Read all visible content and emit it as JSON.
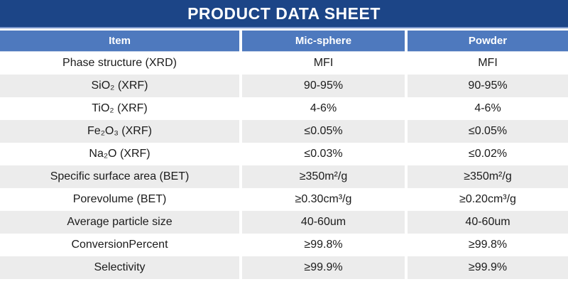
{
  "banner": {
    "title": "PRODUCT DATA SHEET"
  },
  "table": {
    "columns": [
      "Item",
      "Mic-sphere",
      "Powder"
    ],
    "rows": [
      [
        "Phase structure (XRD)",
        "MFI",
        "MFI"
      ],
      [
        "SiO₂ (XRF)",
        "90-95%",
        "90-95%"
      ],
      [
        "TiO₂ (XRF)",
        "4-6%",
        "4-6%"
      ],
      [
        "Fe₂O₃ (XRF)",
        "≤0.05%",
        "≤0.05%"
      ],
      [
        "Na₂O (XRF)",
        "≤0.03%",
        "≤0.02%"
      ],
      [
        "Specific surface area (BET)",
        "≥350m²/g",
        "≥350m²/g"
      ],
      [
        "Porevolume (BET)",
        "≥0.30cm³/g",
        "≥0.20cm³/g"
      ],
      [
        "Average particle size",
        "40-60um",
        "40-60um"
      ],
      [
        "ConversionPercent",
        "≥99.8%",
        "≥99.8%"
      ],
      [
        "Selectivity",
        "≥99.9%",
        "≥99.9%"
      ]
    ]
  },
  "colors": {
    "banner_bg": "#1C4587",
    "header_bg": "#4E79BE",
    "alt_row_bg": "#ECECEC",
    "header_text": "#FFFFFF",
    "body_text": "#1B1B1B"
  }
}
